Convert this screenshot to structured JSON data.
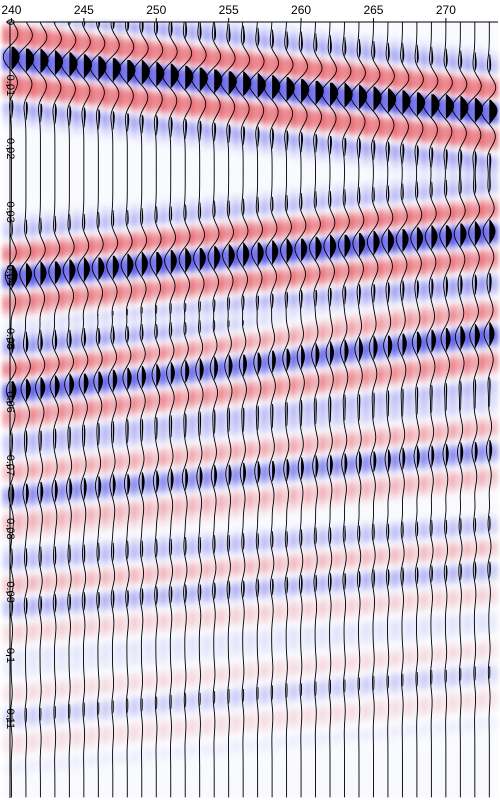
{
  "chart_data": {
    "type": "heatmap",
    "subtype": "seismic-wiggle-variable-area",
    "title": "",
    "xlabel": "",
    "ylabel": "",
    "x_ticks": [
      240,
      245,
      250,
      255,
      260,
      265,
      270
    ],
    "y_ticks": [
      0,
      0.01,
      0.02,
      0.03,
      0.04,
      0.05,
      0.06,
      0.07,
      0.08,
      0.09,
      0.1,
      0.11
    ],
    "y_tick_labels": [
      "0",
      "0.01",
      "0.02",
      "0.03",
      "0.04",
      "0.05",
      "0.06",
      "0.07",
      "0.08",
      "0.09",
      "0.1",
      "0.11"
    ],
    "x_tick_labels": [
      "240",
      "245",
      "250",
      "255",
      "260",
      "265",
      "270"
    ],
    "traces": {
      "first": 240,
      "last": 273,
      "step": 1
    },
    "xlim": [
      239.9,
      273.6
    ],
    "ylim": [
      0,
      0.1225
    ],
    "colormap": {
      "positive": "#e8383e",
      "negative": "#1f1fe0",
      "background": "#ffffff"
    },
    "wiggle_color": "#000000",
    "events": [
      {
        "t_at_240": 0.005,
        "t_at_273": 0.0135,
        "amplitude": 1.0
      },
      {
        "t_at_240": 0.0395,
        "t_at_273": 0.0325,
        "amplitude": 0.75
      },
      {
        "t_at_240": 0.0575,
        "t_at_273": 0.049,
        "amplitude": 0.6
      },
      {
        "t_at_240": 0.074,
        "t_at_273": 0.067,
        "amplitude": 0.35
      },
      {
        "t_at_240": 0.0915,
        "t_at_273": 0.0855,
        "amplitude": 0.18
      },
      {
        "t_at_240": 0.109,
        "t_at_273": 0.102,
        "amplitude": 0.12
      },
      {
        "t_at_240": 0.051,
        "t_at_273": 0.047,
        "amplitude": 0.18
      },
      {
        "t_at_240": 0.0845,
        "t_at_273": 0.079,
        "amplitude": 0.12
      }
    ]
  }
}
